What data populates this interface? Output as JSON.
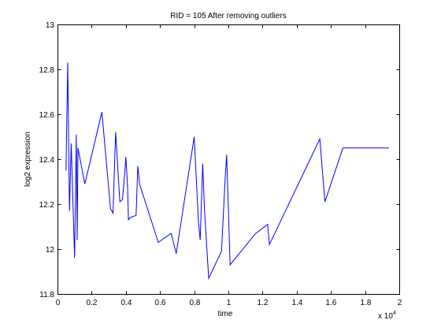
{
  "chart_data": {
    "type": "line",
    "title": "RID = 105 After removing outliers",
    "xlabel": "time",
    "ylabel": "log2 expression",
    "x_multiplier_label": "x 10",
    "x_multiplier_exp": "4",
    "xlim": [
      0,
      20000
    ],
    "ylim": [
      11.8,
      13
    ],
    "x_ticks": [
      0,
      2000,
      4000,
      6000,
      8000,
      10000,
      12000,
      14000,
      16000,
      18000,
      20000
    ],
    "x_tick_labels": [
      "0",
      "0.2",
      "0.4",
      "0.6",
      "0.8",
      "1",
      "1.2",
      "1.4",
      "1.6",
      "1.8",
      "2"
    ],
    "y_ticks": [
      11.8,
      12,
      12.2,
      12.4,
      12.6,
      12.8,
      13
    ],
    "y_tick_labels": [
      "11.8",
      "12",
      "12.2",
      "12.4",
      "12.6",
      "12.8",
      "13"
    ],
    "grid": false,
    "legend": "none",
    "series": [
      {
        "color": "#0000ff",
        "x": [
          500,
          600,
          700,
          800,
          1000,
          1100,
          1150,
          1200,
          1600,
          2600,
          3100,
          3250,
          3400,
          3650,
          3800,
          3950,
          4000,
          4100,
          4150,
          4250,
          4600,
          4700,
          4800,
          5900,
          6650,
          6950,
          8000,
          8250,
          8350,
          8500,
          8600,
          8850,
          9600,
          9800,
          9900,
          10100,
          11600,
          12300,
          12400,
          15350,
          15650,
          16700,
          17500,
          19400
        ],
        "y": [
          12.35,
          12.83,
          12.17,
          12.47,
          11.96,
          12.51,
          12.04,
          12.45,
          12.29,
          12.61,
          12.18,
          12.16,
          12.52,
          12.21,
          12.22,
          12.35,
          12.41,
          12.28,
          12.13,
          12.14,
          12.15,
          12.37,
          12.29,
          12.03,
          12.07,
          11.98,
          12.5,
          12.12,
          12.04,
          12.38,
          12.18,
          11.87,
          11.99,
          12.3,
          12.42,
          11.93,
          12.07,
          12.11,
          12.02,
          12.49,
          12.21,
          12.45,
          12.45,
          12.45
        ]
      }
    ]
  }
}
